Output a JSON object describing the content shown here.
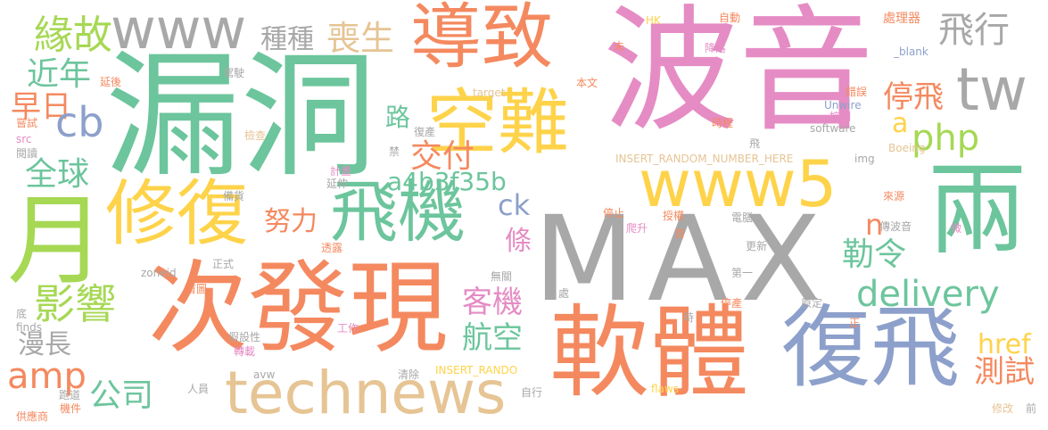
{
  "colors": {
    "green": "#6cc59c",
    "orange": "#f4895f",
    "pink": "#e58cc4",
    "gray": "#a8a8a8",
    "yellow": "#fed34a",
    "blue": "#8da0cb",
    "tan": "#e6c494",
    "lime": "#a6d854",
    "background": "#ffffff"
  },
  "words": [
    {
      "text": "漏洞"
    },
    {
      "text": "波音"
    },
    {
      "text": "MAX"
    },
    {
      "text": "次發現"
    },
    {
      "text": "軟體"
    },
    {
      "text": "導致"
    },
    {
      "text": "空難"
    },
    {
      "text": "修復"
    },
    {
      "text": "飛機"
    },
    {
      "text": "月"
    },
    {
      "text": "兩"
    },
    {
      "text": "復飛"
    },
    {
      "text": "www5"
    },
    {
      "text": "www"
    },
    {
      "text": "technews"
    },
    {
      "text": "tw"
    },
    {
      "text": "delivery"
    },
    {
      "text": "影響"
    },
    {
      "text": "緣故"
    },
    {
      "text": "飛行"
    },
    {
      "text": "喪生"
    },
    {
      "text": "種種"
    },
    {
      "text": "近年"
    },
    {
      "text": "早日"
    },
    {
      "text": "cb"
    },
    {
      "text": "全球"
    },
    {
      "text": "路"
    },
    {
      "text": "交付"
    },
    {
      "text": "a4b3f35b"
    },
    {
      "text": "努力"
    },
    {
      "text": "php"
    },
    {
      "text": "停飛"
    },
    {
      "text": "a"
    },
    {
      "text": "n"
    },
    {
      "text": "勒令"
    },
    {
      "text": "客機"
    },
    {
      "text": "航空"
    },
    {
      "text": "條"
    },
    {
      "text": "ck"
    },
    {
      "text": "amp"
    },
    {
      "text": "公司"
    },
    {
      "text": "漫長"
    },
    {
      "text": "href"
    },
    {
      "text": "測試"
    },
    {
      "text": "HK"
    },
    {
      "text": "自動"
    },
    {
      "text": "處理器"
    },
    {
      "text": "_blank"
    },
    {
      "text": "未"
    },
    {
      "text": "降落"
    },
    {
      "text": "本文"
    },
    {
      "text": "錯誤"
    },
    {
      "text": "target"
    },
    {
      "text": "控制"
    },
    {
      "text": "Unwire"
    },
    {
      "text": "時程"
    },
    {
      "text": "software"
    },
    {
      "text": "飛"
    },
    {
      "text": "INSERT_RANDOM_NUMBER_HERE"
    },
    {
      "text": "復產"
    },
    {
      "text": "檢查"
    },
    {
      "text": "禁"
    },
    {
      "text": "img"
    },
    {
      "text": "Boeing"
    },
    {
      "text": "計畫"
    },
    {
      "text": "延伸"
    },
    {
      "text": "備貨"
    },
    {
      "text": "停止"
    },
    {
      "text": "爬升"
    },
    {
      "text": "電腦"
    },
    {
      "text": "首"
    },
    {
      "text": "授權"
    },
    {
      "text": "來源"
    },
    {
      "text": "傳波音"
    },
    {
      "text": "微"
    },
    {
      "text": "更新"
    },
    {
      "text": "第一"
    },
    {
      "text": "處"
    },
    {
      "text": "停產"
    },
    {
      "text": "原定"
    },
    {
      "text": "時"
    },
    {
      "text": "正"
    },
    {
      "text": "工作"
    },
    {
      "text": "INSERT_RANDO"
    },
    {
      "text": "清除"
    },
    {
      "text": "自行"
    },
    {
      "text": "flaws"
    },
    {
      "text": "avw"
    },
    {
      "text": "人員"
    },
    {
      "text": "跑道"
    },
    {
      "text": "機件"
    },
    {
      "text": "供應商"
    },
    {
      "text": "修改"
    },
    {
      "text": "前"
    },
    {
      "text": "首圖"
    },
    {
      "text": "正式"
    },
    {
      "text": "無關"
    },
    {
      "text": "zoneid"
    },
    {
      "text": "透露"
    },
    {
      "text": "finds"
    },
    {
      "text": "假設性"
    },
    {
      "text": "轉載"
    },
    {
      "text": "底"
    },
    {
      "text": "延後"
    },
    {
      "text": "駕駛"
    },
    {
      "text": "嘗試"
    },
    {
      "text": "src"
    },
    {
      "text": "閱讀"
    }
  ]
}
